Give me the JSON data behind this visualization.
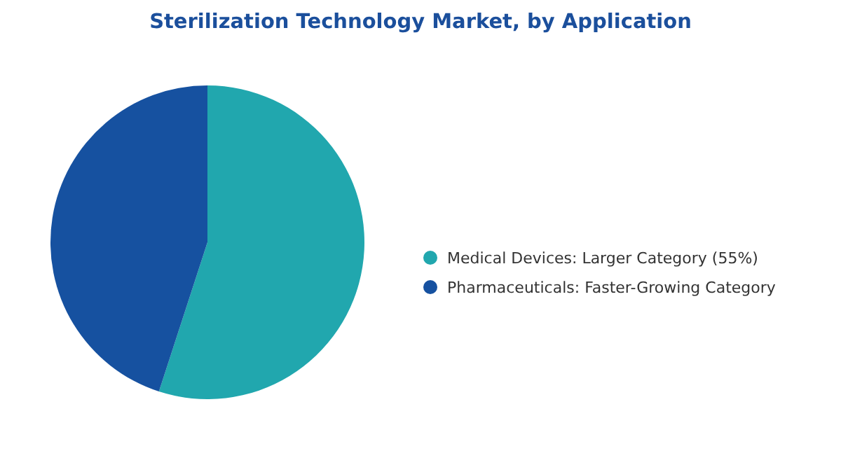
{
  "chart_data": {
    "type": "pie",
    "title": "Sterilization Technology Market, by Application",
    "categories": [
      "Medical Devices:  Larger Category (55%)",
      "Pharmaceuticals:  Faster-Growing Category"
    ],
    "values": [
      55,
      45
    ],
    "colors": [
      "#21a7ae",
      "#1651a0"
    ],
    "legend": "right"
  }
}
